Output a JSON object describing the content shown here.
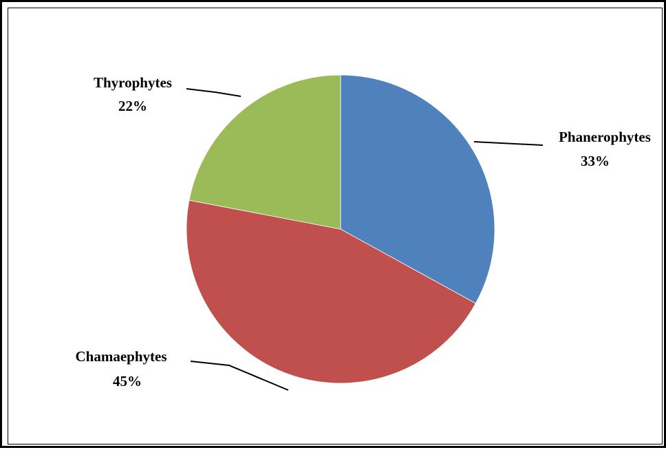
{
  "chart_data": {
    "type": "pie",
    "title": "",
    "categories": [
      "Phanerophytes",
      "Chamaephytes",
      "Thyrophytes"
    ],
    "values": [
      33,
      45,
      22
    ],
    "value_labels": [
      "33%",
      "45%",
      "22%"
    ],
    "colors": [
      "#4F81BD",
      "#C0504D",
      "#9BBB59"
    ],
    "start_angle": "12 o'clock",
    "direction": "clockwise",
    "legend": "none",
    "data_labels": "outside with leader lines"
  }
}
